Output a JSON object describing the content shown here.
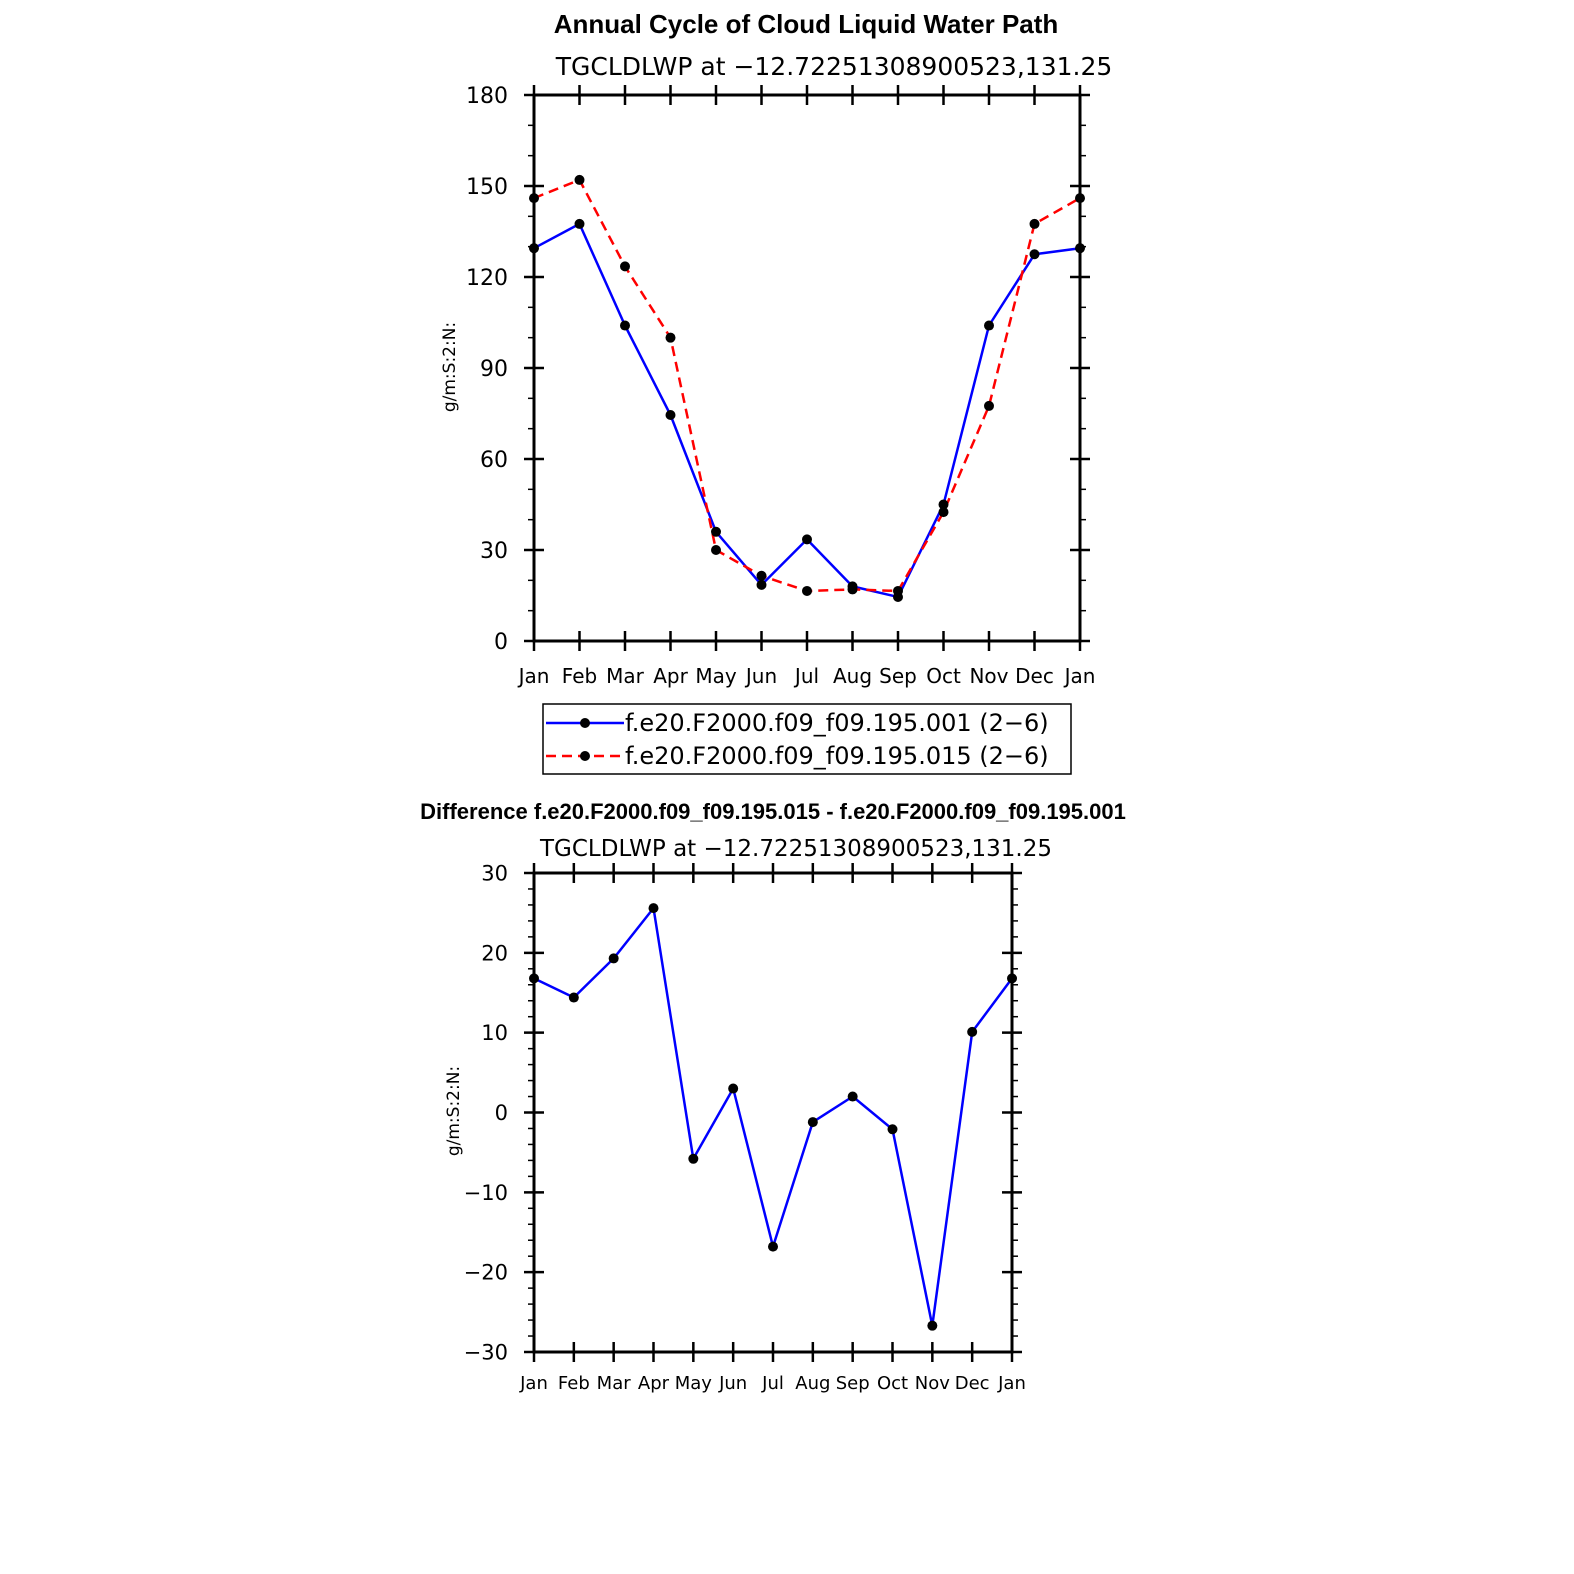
{
  "figure_title": "Annual Cycle of Cloud Liquid Water Path",
  "diff_title": "Difference f.e20.F2000.f09_f09.195.015 - f.e20.F2000.f09_f09.195.001",
  "colors": {
    "series1": "#0000ff",
    "series2": "#ff0000",
    "markers": "#000000"
  },
  "chart_data": [
    {
      "type": "line",
      "title": "Annual Cycle of Cloud Liquid Water Path",
      "subtitle": "TGCLDLWP  at  −12.72251308900523,131.25",
      "ylabel": "g/m:S:2:N:",
      "xlabel": "",
      "categories": [
        "Jan",
        "Feb",
        "Mar",
        "Apr",
        "May",
        "Jun",
        "Jul",
        "Aug",
        "Sep",
        "Oct",
        "Nov",
        "Dec",
        "Jan"
      ],
      "ylim": [
        0,
        180
      ],
      "yticks": [
        0,
        30,
        60,
        90,
        120,
        150,
        180
      ],
      "grid": false,
      "legend_position": "bottom",
      "series": [
        {
          "name": "f.e20.F2000.f09_f09.195.001 (2−6)",
          "style": "solid",
          "color": "#0000ff",
          "values": [
            129.5,
            137.5,
            104,
            74.5,
            36,
            18.5,
            33.5,
            18,
            14.5,
            45,
            104,
            127.5,
            129.5
          ]
        },
        {
          "name": "f.e20.F2000.f09_f09.195.015 (2−6)",
          "style": "dashed",
          "color": "#ff0000",
          "values": [
            146,
            152,
            123.5,
            100,
            30,
            21.5,
            16.5,
            17,
            16.5,
            42.5,
            77.5,
            137.5,
            146
          ]
        }
      ]
    },
    {
      "type": "line",
      "title": "Difference f.e20.F2000.f09_f09.195.015 - f.e20.F2000.f09_f09.195.001",
      "subtitle": "TGCLDLWP  at  −12.72251308900523,131.25",
      "ylabel": "g/m:S:2:N:",
      "xlabel": "",
      "categories": [
        "Jan",
        "Feb",
        "Mar",
        "Apr",
        "May",
        "Jun",
        "Jul",
        "Aug",
        "Sep",
        "Oct",
        "Nov",
        "Dec",
        "Jan"
      ],
      "ylim": [
        -30,
        30
      ],
      "yticks": [
        -30,
        -20,
        -10,
        0,
        10,
        20,
        30
      ],
      "grid": false,
      "series": [
        {
          "style": "solid",
          "color": "#0000ff",
          "values": [
            16.8,
            14.4,
            19.3,
            25.6,
            -5.8,
            3.0,
            -16.8,
            -1.2,
            2.0,
            -2.1,
            -26.7,
            10.1,
            16.8
          ]
        }
      ]
    }
  ]
}
